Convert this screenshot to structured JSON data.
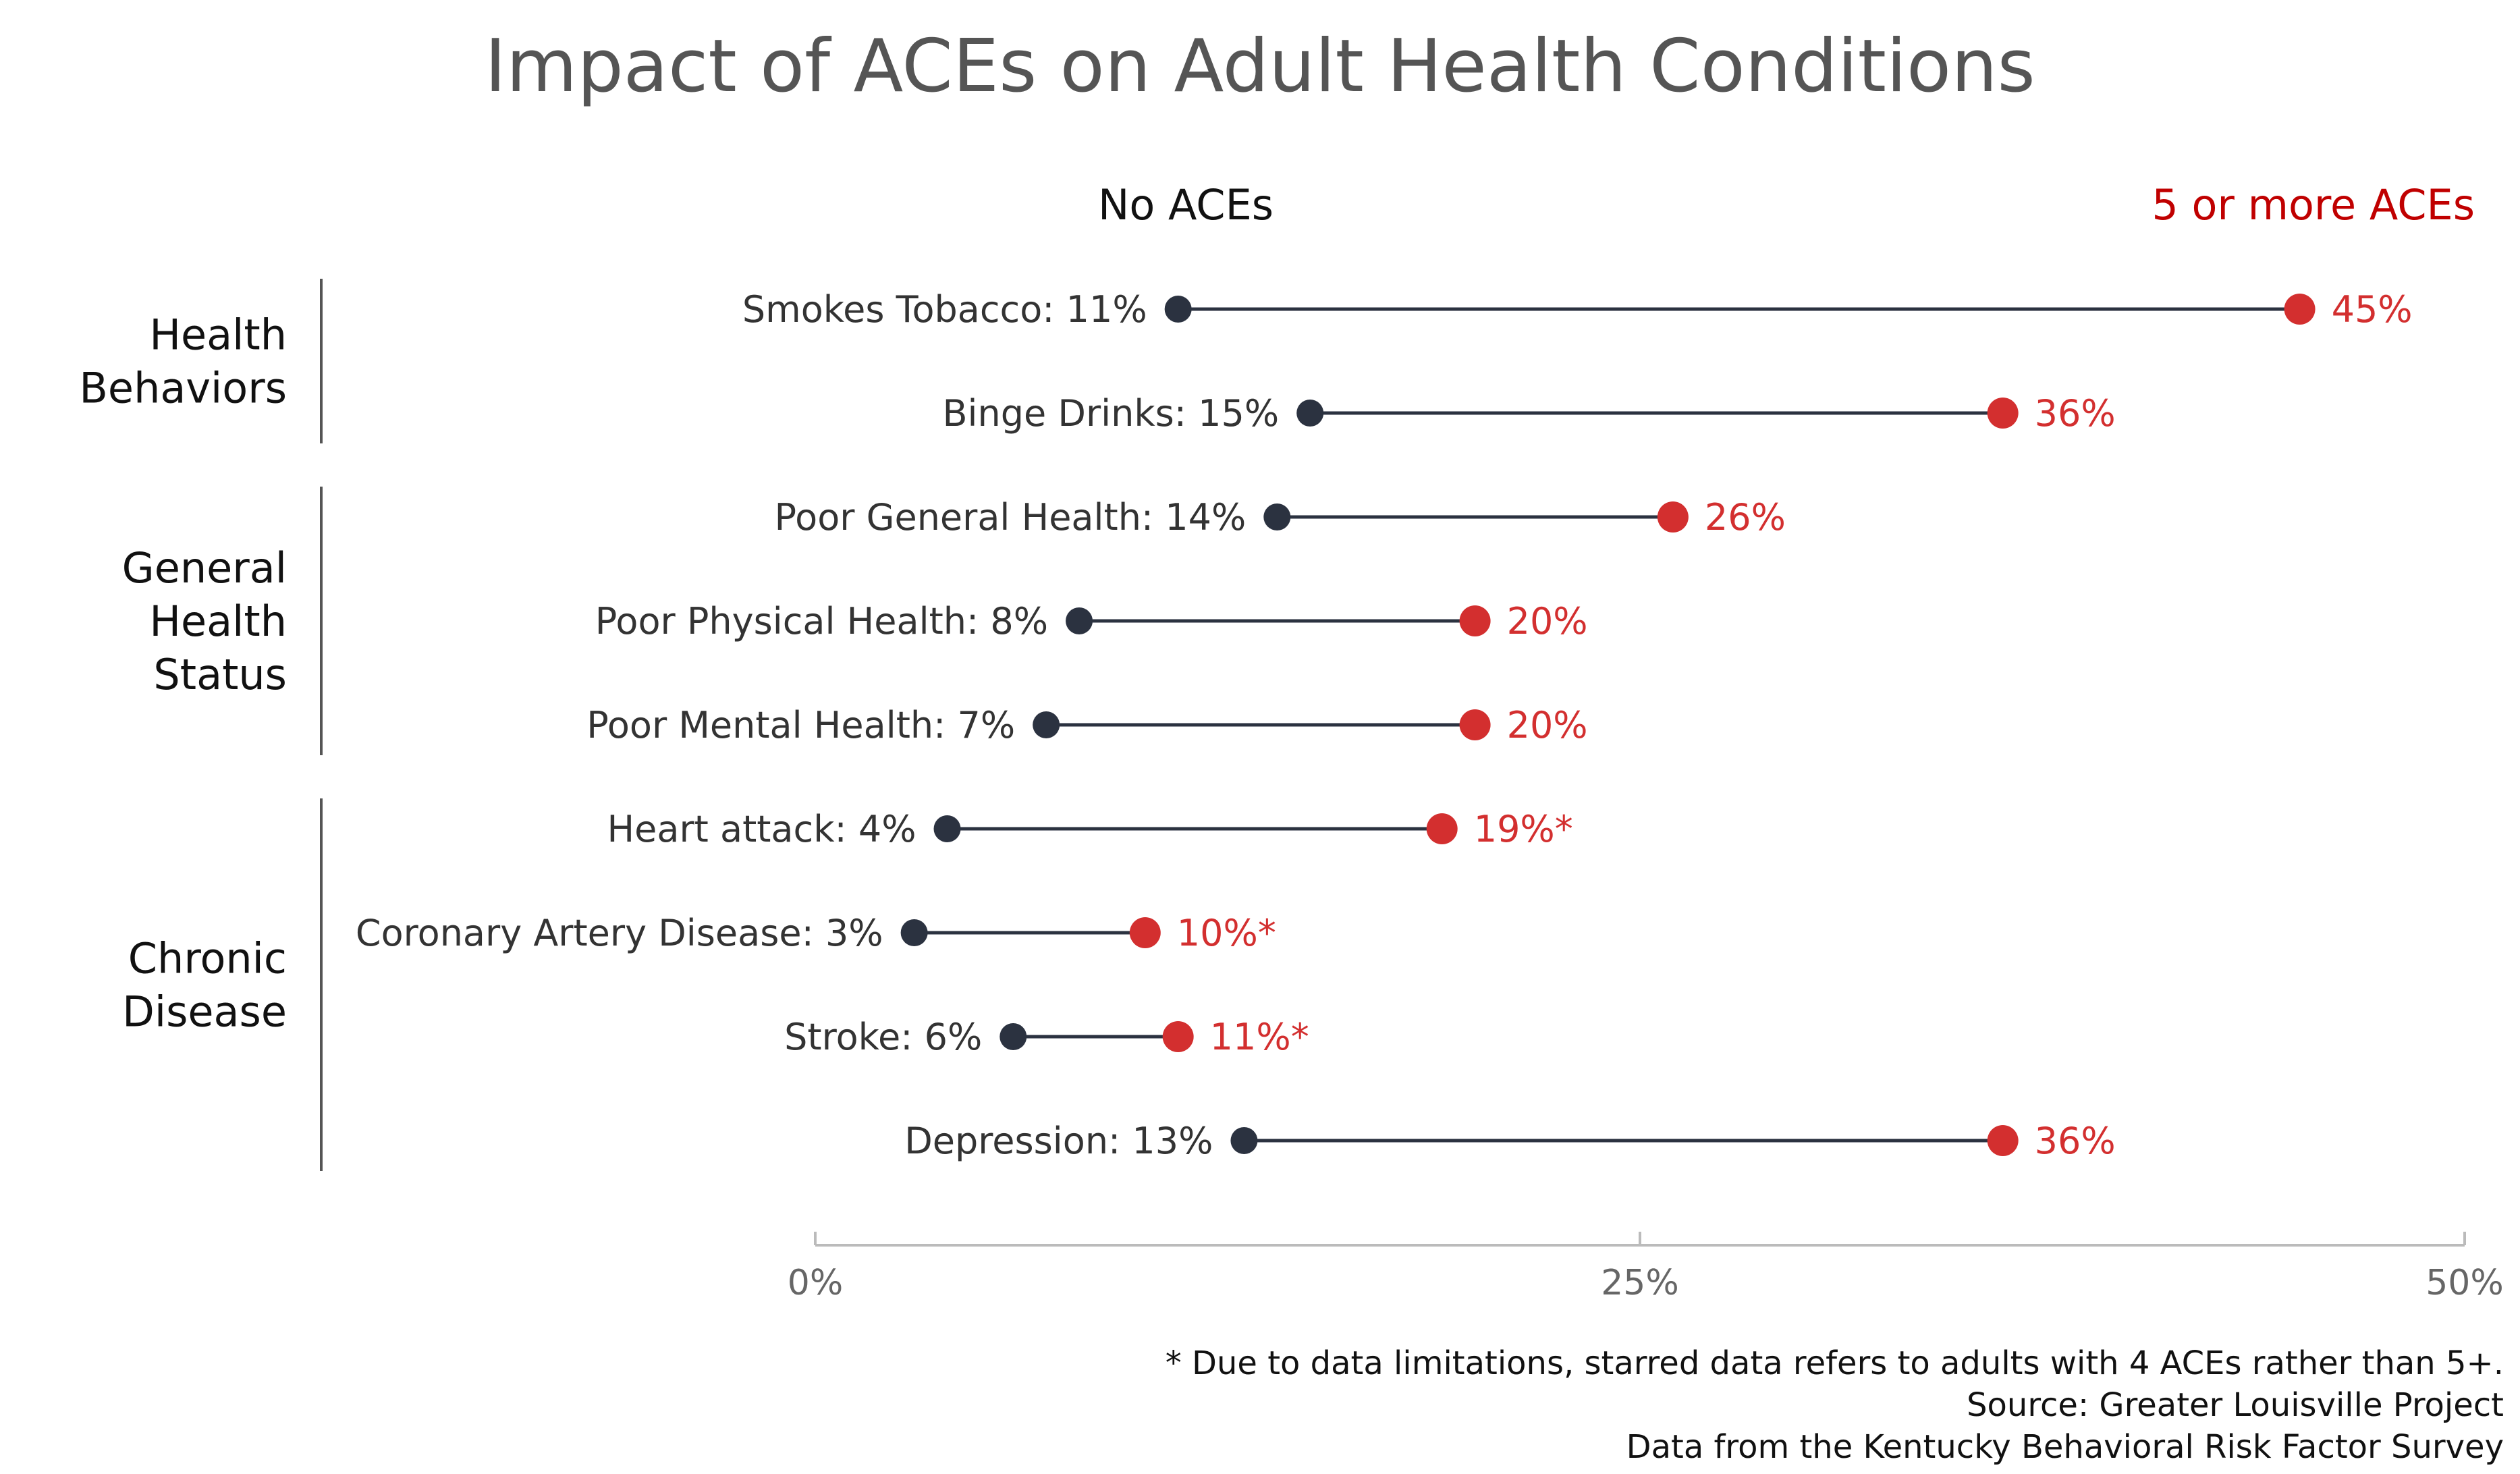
{
  "chart_data": {
    "type": "dumbbell",
    "title": "Impact of ACEs on Adult Health Conditions",
    "series": [
      {
        "name": "No ACEs",
        "color": "#2b3240"
      },
      {
        "name": "5 or more ACEs",
        "color": "#d32f2f"
      }
    ],
    "legend_right_color": "#c00000",
    "groups": [
      {
        "label_lines": [
          "Health",
          "Behaviors"
        ],
        "rows": [
          0,
          1
        ]
      },
      {
        "label_lines": [
          "General",
          "Health",
          "Status"
        ],
        "rows": [
          2,
          3,
          4
        ]
      },
      {
        "label_lines": [
          "Chronic",
          "Disease"
        ],
        "rows": [
          5,
          6,
          7,
          8
        ]
      }
    ],
    "rows": [
      {
        "label": "Smokes Tobacco:",
        "left_value": 11,
        "left_text": "11%",
        "right_value": 45,
        "right_text": "45%"
      },
      {
        "label": "Binge Drinks:",
        "left_value": 15,
        "left_text": "15%",
        "right_value": 36,
        "right_text": "36%"
      },
      {
        "label": "Poor General Health:",
        "left_value": 14,
        "left_text": "14%",
        "right_value": 26,
        "right_text": "26%"
      },
      {
        "label": "Poor Physical Health:",
        "left_value": 8,
        "left_text": "8%",
        "right_value": 20,
        "right_text": "20%"
      },
      {
        "label": "Poor Mental Health:",
        "left_value": 7,
        "left_text": "7%",
        "right_value": 20,
        "right_text": "20%"
      },
      {
        "label": "Heart attack:",
        "left_value": 4,
        "left_text": "4%",
        "right_value": 19,
        "right_text": "19%*"
      },
      {
        "label": "Coronary Artery Disease:",
        "left_value": 3,
        "left_text": "3%",
        "right_value": 10,
        "right_text": "10%*"
      },
      {
        "label": "Stroke:",
        "left_value": 6,
        "left_text": "6%",
        "right_value": 11,
        "right_text": "11%*"
      },
      {
        "label": "Depression:",
        "left_value": 13,
        "left_text": "13%",
        "right_value": 36,
        "right_text": "36%"
      }
    ],
    "x_axis": {
      "range": [
        0,
        50
      ],
      "ticks": [
        {
          "value": 0,
          "label": "0%"
        },
        {
          "value": 25,
          "label": "25%"
        },
        {
          "value": 50,
          "label": "50%"
        }
      ]
    },
    "footnotes": [
      "* Due to data limitations, starred data refers to adults with 4 ACEs rather than 5+.",
      "Source: Greater Louisville Project",
      "Data from the Kentucky Behavioral Risk Factor Survey"
    ]
  }
}
